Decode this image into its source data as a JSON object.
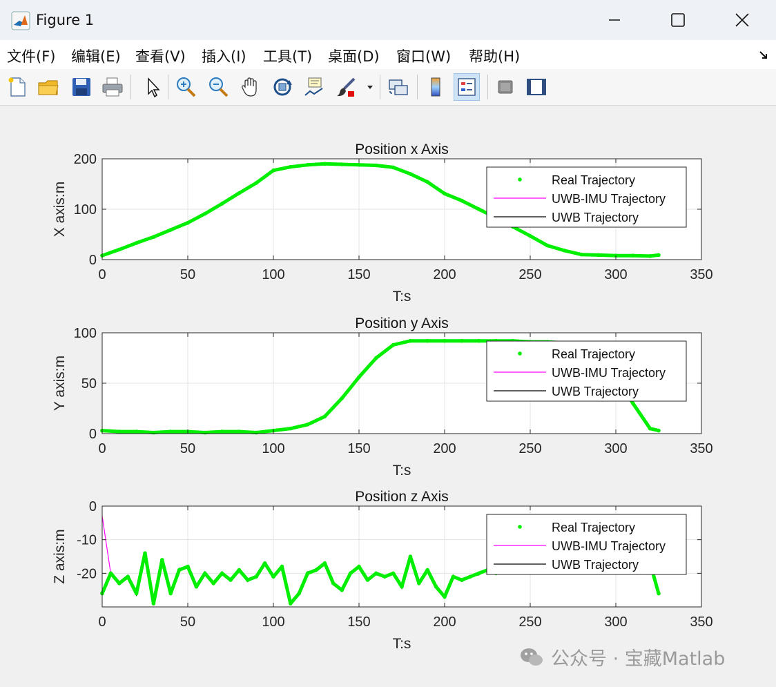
{
  "window": {
    "title": "Figure 1",
    "menu": [
      "文件(F)",
      "编辑(E)",
      "查看(V)",
      "插入(I)",
      "工具(T)",
      "桌面(D)",
      "窗口(W)",
      "帮助(H)"
    ],
    "toolbar": [
      "new-figure",
      "open-file",
      "save",
      "print",
      "edit-plot",
      "zoom-in",
      "zoom-out",
      "pan",
      "rotate-3d",
      "data-cursor",
      "brush",
      "brush-menu",
      "link-plot",
      "colorbar",
      "legend",
      "hide-plot-tools",
      "show-plot-tools"
    ],
    "active_tool": "legend"
  },
  "colors": {
    "real": "#00ee00",
    "uwb_imu": "#ff00ff",
    "uwb": "#000000"
  },
  "legend": [
    "Real Trajectory",
    "UWB-IMU Trajectory",
    "UWB Trajectory"
  ],
  "watermark": "公众号 · 宝藏Matlab",
  "chart_data": [
    {
      "type": "line",
      "title": "Position x Axis",
      "xlabel": "T:s",
      "ylabel": "X axis:m",
      "xlim": [
        0,
        350
      ],
      "ylim": [
        0,
        200
      ],
      "xticks": [
        0,
        50,
        100,
        150,
        200,
        250,
        300,
        350
      ],
      "yticks": [
        0,
        100,
        200
      ],
      "grid": true,
      "legend_position": "top-right",
      "x": [
        0,
        10,
        20,
        30,
        40,
        50,
        60,
        70,
        80,
        90,
        100,
        110,
        120,
        130,
        140,
        150,
        160,
        170,
        180,
        190,
        200,
        210,
        220,
        230,
        240,
        250,
        260,
        270,
        280,
        290,
        300,
        310,
        320,
        325
      ],
      "series": [
        {
          "name": "Real Trajectory",
          "values": [
            8,
            20,
            33,
            45,
            59,
            73,
            91,
            111,
            132,
            152,
            177,
            184,
            188,
            190,
            189,
            188,
            187,
            183,
            170,
            154,
            131,
            117,
            100,
            83,
            65,
            47,
            28,
            18,
            10,
            9,
            8,
            8,
            7,
            9
          ]
        },
        {
          "name": "UWB-IMU Trajectory",
          "values": [
            8,
            20,
            33,
            45,
            59,
            73,
            91,
            111,
            132,
            152,
            177,
            184,
            188,
            190,
            189,
            188,
            187,
            183,
            170,
            154,
            131,
            117,
            100,
            83,
            65,
            47,
            28,
            18,
            10,
            9,
            8,
            8,
            7,
            9
          ]
        },
        {
          "name": "UWB Trajectory",
          "values": [
            8,
            20,
            33,
            45,
            59,
            73,
            91,
            111,
            132,
            152,
            177,
            184,
            188,
            190,
            189,
            188,
            187,
            183,
            170,
            154,
            131,
            117,
            100,
            83,
            65,
            47,
            28,
            18,
            10,
            9,
            8,
            8,
            7,
            9
          ]
        }
      ]
    },
    {
      "type": "line",
      "title": "Position y Axis",
      "xlabel": "T:s",
      "ylabel": "Y axis:m",
      "xlim": [
        0,
        350
      ],
      "ylim": [
        0,
        100
      ],
      "xticks": [
        0,
        50,
        100,
        150,
        200,
        250,
        300,
        350
      ],
      "yticks": [
        0,
        50,
        100
      ],
      "grid": true,
      "legend_position": "top-right",
      "x": [
        0,
        10,
        20,
        30,
        40,
        50,
        60,
        70,
        80,
        90,
        100,
        110,
        120,
        130,
        140,
        150,
        160,
        170,
        180,
        190,
        200,
        210,
        220,
        230,
        240,
        250,
        260,
        270,
        280,
        290,
        300,
        310,
        320,
        325
      ],
      "series": [
        {
          "name": "Real Trajectory",
          "values": [
            3,
            2,
            2,
            1,
            2,
            2,
            1,
            2,
            2,
            1,
            3,
            5,
            9,
            17,
            35,
            56,
            75,
            88,
            92,
            92,
            92,
            92,
            92,
            92,
            92,
            91,
            91,
            90,
            88,
            80,
            58,
            30,
            5,
            3
          ]
        },
        {
          "name": "UWB-IMU Trajectory",
          "values": [
            3,
            2,
            2,
            1,
            2,
            2,
            1,
            2,
            2,
            1,
            3,
            5,
            9,
            17,
            35,
            56,
            75,
            88,
            92,
            92,
            92,
            92,
            92,
            92,
            92,
            91,
            91,
            90,
            88,
            80,
            58,
            30,
            5,
            3
          ]
        },
        {
          "name": "UWB Trajectory",
          "values": [
            3,
            2,
            2,
            1,
            2,
            2,
            1,
            2,
            2,
            1,
            3,
            5,
            9,
            17,
            35,
            56,
            75,
            88,
            92,
            92,
            92,
            92,
            92,
            92,
            92,
            91,
            91,
            90,
            88,
            80,
            58,
            30,
            5,
            3
          ]
        }
      ]
    },
    {
      "type": "line",
      "title": "Position z Axis",
      "xlabel": "T:s",
      "ylabel": "Z axis:m",
      "xlim": [
        0,
        350
      ],
      "ylim": [
        -30,
        0
      ],
      "xticks": [
        0,
        50,
        100,
        150,
        200,
        250,
        300,
        350
      ],
      "yticks": [
        -20,
        -10,
        0
      ],
      "grid": true,
      "legend_position": "top-right",
      "x": [
        0,
        5,
        10,
        15,
        20,
        25,
        30,
        35,
        40,
        45,
        50,
        55,
        60,
        65,
        70,
        75,
        80,
        85,
        90,
        95,
        100,
        105,
        110,
        115,
        120,
        125,
        130,
        135,
        140,
        145,
        150,
        155,
        160,
        165,
        170,
        175,
        180,
        185,
        190,
        195,
        200,
        205,
        210,
        215,
        220,
        225,
        230,
        240,
        250,
        260,
        270,
        280,
        290,
        300,
        310,
        320,
        325
      ],
      "series": [
        {
          "name": "Real Trajectory",
          "values": [
            -26,
            -20,
            -23,
            -21,
            -26,
            -14,
            -29,
            -16,
            -26,
            -19,
            -18,
            -24,
            -20,
            -23,
            -20,
            -22,
            -19,
            -22,
            -21,
            -17,
            -21,
            -18,
            -29,
            -26,
            -20,
            -19,
            -17,
            -23,
            -25,
            -20,
            -18,
            -22,
            -20,
            -21,
            -20,
            -24,
            -15,
            -23,
            -19,
            -24,
            -27,
            -21,
            -22,
            -21,
            -20,
            -19,
            -20,
            -19,
            -18,
            -18,
            -17,
            -18,
            -17,
            -16,
            -16,
            -17,
            -26
          ]
        },
        {
          "name": "UWB-IMU Trajectory",
          "values": [
            -3,
            -20,
            -23,
            -21,
            -26,
            -14,
            -29,
            -16,
            -26,
            -19,
            -18,
            -24,
            -20,
            -23,
            -20,
            -22,
            -19,
            -22,
            -21,
            -17,
            -21,
            -18,
            -29,
            -26,
            -20,
            -19,
            -17,
            -23,
            -25,
            -20,
            -18,
            -22,
            -20,
            -21,
            -20,
            -24,
            -15,
            -23,
            -19,
            -24,
            -27,
            -21,
            -22,
            -21,
            -20,
            -19,
            -20,
            -19,
            -18,
            -18,
            -17,
            -18,
            -17,
            -16,
            -16,
            -17,
            -26
          ]
        },
        {
          "name": "UWB Trajectory",
          "values": [
            -26,
            -20,
            -22.5,
            -20.5,
            -26.5,
            -13.5,
            -29.5,
            -16,
            -25.5,
            -18.5,
            -18,
            -24,
            -19.5,
            -23,
            -19.5,
            -22,
            -19,
            -22.5,
            -20.5,
            -17,
            -20.5,
            -18.5,
            -29,
            -25.5,
            -19.5,
            -19.5,
            -17.5,
            -23.5,
            -24.5,
            -19.5,
            -18.5,
            -21.5,
            -20.5,
            -21,
            -20,
            -24.5,
            -15.5,
            -22.5,
            -19.5,
            -24.5,
            -26.5,
            -20.5,
            -22.5,
            -21,
            -20.5,
            -19,
            -20,
            -19.5,
            -18,
            -18.5,
            -17,
            -18,
            -17.5,
            -16,
            -16.5,
            -17,
            -26
          ]
        }
      ]
    }
  ]
}
